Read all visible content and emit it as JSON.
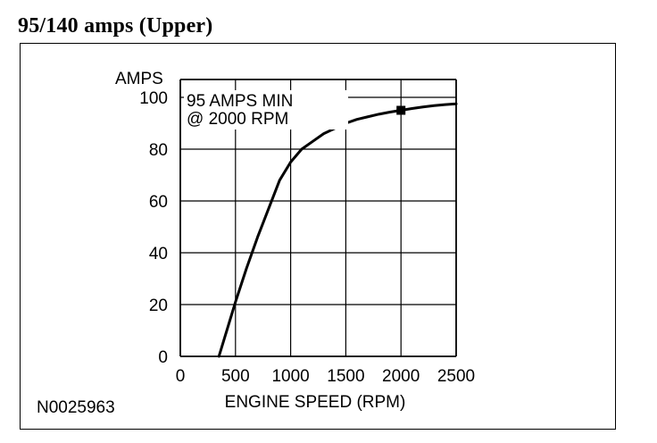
{
  "heading": "95/140 amps (Upper)",
  "figure_id": "N0025963",
  "chart_data": {
    "type": "line",
    "title": "",
    "xlabel": "ENGINE SPEED (RPM)",
    "ylabel": "AMPS",
    "xlim": [
      0,
      2500
    ],
    "ylim": [
      0,
      100
    ],
    "xticks": [
      0,
      500,
      1000,
      1500,
      2000,
      2500
    ],
    "yticks": [
      0,
      20,
      40,
      60,
      80,
      100
    ],
    "grid": true,
    "annotation": [
      "95 AMPS MIN",
      "@ 2000 RPM"
    ],
    "marker": {
      "x": 2000,
      "y": 95
    },
    "series": [
      {
        "x": [
          350,
          400,
          500,
          600,
          700,
          800,
          900,
          1000,
          1100,
          1200,
          1300,
          1400,
          1500,
          1600,
          1700,
          1800,
          1900,
          2000,
          2100,
          2200,
          2300,
          2400,
          2500
        ],
        "y": [
          0,
          7,
          21,
          34,
          46,
          57,
          68,
          75,
          80,
          83,
          86,
          88,
          90,
          91.5,
          92.5,
          93.5,
          94.3,
          95,
          95.7,
          96.3,
          96.8,
          97.2,
          97.5
        ]
      }
    ],
    "color": "#000000"
  }
}
